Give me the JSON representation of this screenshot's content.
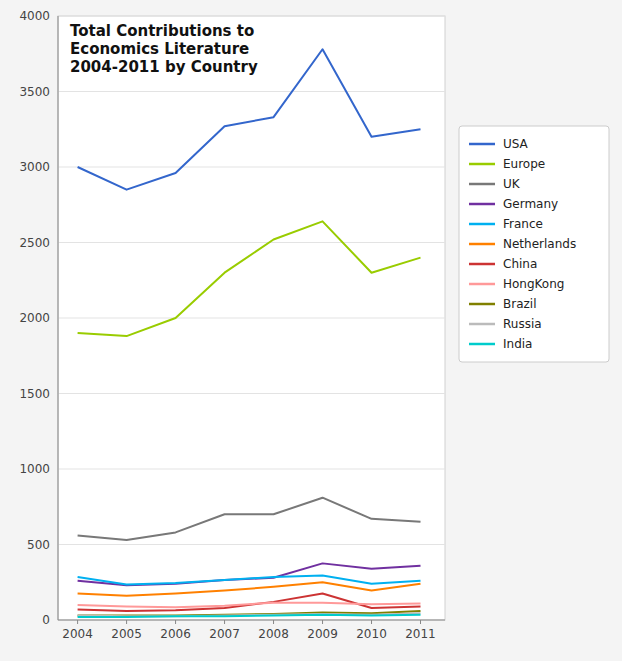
{
  "chart_data": {
    "type": "line",
    "title": "Total Contributions to\nEconomics Literature\n2004-2011 by Country",
    "x": [
      2004,
      2005,
      2006,
      2007,
      2008,
      2009,
      2010,
      2011
    ],
    "xlim": [
      2003.6,
      2011.5
    ],
    "xticks": [
      2004,
      2005,
      2006,
      2007,
      2008,
      2009,
      2010,
      2011
    ],
    "ylim": [
      0,
      4000
    ],
    "yticks": [
      0,
      500,
      1000,
      1500,
      2000,
      2500,
      3000,
      3500,
      4000
    ],
    "grid": true,
    "legend": "right",
    "series": [
      {
        "name": "USA",
        "color": "#3366CC",
        "values": [
          3000,
          2850,
          2960,
          3270,
          3330,
          3780,
          3200,
          3250
        ]
      },
      {
        "name": "Europe",
        "color": "#99CC00",
        "values": [
          1900,
          1880,
          2000,
          2300,
          2520,
          2640,
          2300,
          2400
        ]
      },
      {
        "name": "UK",
        "color": "#787878",
        "values": [
          560,
          530,
          580,
          700,
          700,
          810,
          670,
          650
        ]
      },
      {
        "name": "Germany",
        "color": "#7030A0",
        "values": [
          260,
          230,
          240,
          265,
          280,
          375,
          340,
          360
        ]
      },
      {
        "name": "France",
        "color": "#00B0F0",
        "values": [
          285,
          235,
          245,
          265,
          285,
          295,
          240,
          260
        ]
      },
      {
        "name": "Netherlands",
        "color": "#FF8000",
        "values": [
          175,
          160,
          175,
          195,
          220,
          250,
          195,
          240
        ]
      },
      {
        "name": "China",
        "color": "#CC3333",
        "values": [
          70,
          60,
          65,
          80,
          120,
          175,
          80,
          90
        ]
      },
      {
        "name": "HongKong",
        "color": "#FF9999",
        "values": [
          100,
          90,
          85,
          95,
          115,
          115,
          105,
          110
        ]
      },
      {
        "name": "Brazil",
        "color": "#808000",
        "values": [
          30,
          30,
          30,
          35,
          40,
          50,
          45,
          60
        ]
      },
      {
        "name": "Russia",
        "color": "#BBBBBB",
        "values": [
          30,
          25,
          25,
          30,
          35,
          40,
          35,
          45
        ]
      },
      {
        "name": "India",
        "color": "#00CCCC",
        "values": [
          20,
          20,
          25,
          25,
          30,
          35,
          30,
          35
        ]
      }
    ]
  }
}
